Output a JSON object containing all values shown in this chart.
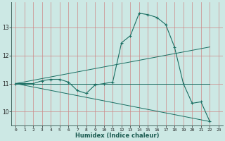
{
  "xlabel": "Humidex (Indice chaleur)",
  "background_color": "#cce8e4",
  "line_color": "#1a6e62",
  "grid_color": "#cc8888",
  "xlim": [
    -0.5,
    23.5
  ],
  "ylim": [
    9.5,
    13.9
  ],
  "xticks": [
    0,
    1,
    2,
    3,
    4,
    5,
    6,
    7,
    8,
    9,
    10,
    11,
    12,
    13,
    14,
    15,
    16,
    17,
    18,
    19,
    20,
    21,
    22,
    23
  ],
  "yticks": [
    10,
    11,
    12,
    13
  ],
  "main_series": {
    "x": [
      0,
      1,
      2,
      3,
      4,
      5,
      6,
      7,
      8,
      9,
      10,
      11,
      12,
      13,
      14,
      15,
      16,
      17,
      18,
      19,
      20,
      21,
      22
    ],
    "y": [
      11,
      11,
      11,
      11.1,
      11.15,
      11.15,
      11.05,
      10.75,
      10.65,
      10.95,
      11.0,
      11.05,
      12.45,
      12.7,
      13.5,
      13.45,
      13.35,
      13.1,
      12.3,
      11.0,
      10.3,
      10.35,
      9.65
    ]
  },
  "straight_lines": [
    {
      "x": [
        0,
        22
      ],
      "y": [
        11.0,
        12.3
      ]
    },
    {
      "x": [
        0,
        22
      ],
      "y": [
        11.0,
        9.65
      ]
    },
    {
      "x": [
        0,
        22
      ],
      "y": [
        11.0,
        11.0
      ]
    }
  ]
}
